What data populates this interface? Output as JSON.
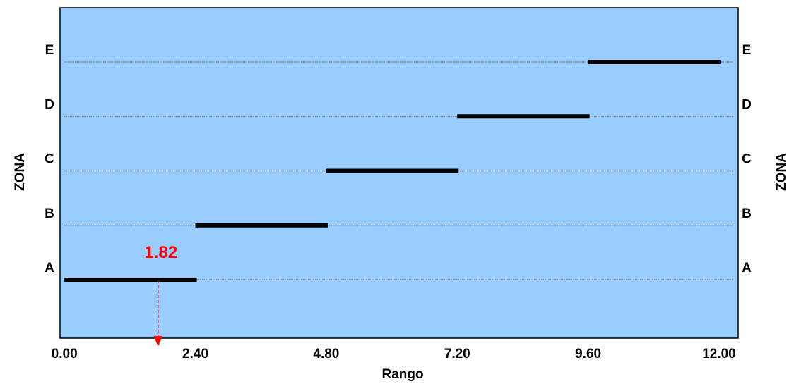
{
  "chart_data": {
    "type": "range-bar",
    "title": "",
    "xlabel": "Rango",
    "ylabel_left": "ZONA",
    "ylabel_right": "ZONA",
    "xlim": [
      -0.08,
      12.35
    ],
    "x_ticks": [
      "0.00",
      "2.40",
      "4.80",
      "7.20",
      "9.60",
      "12.00"
    ],
    "x_tick_values": [
      0,
      2.4,
      4.8,
      7.2,
      9.6,
      12.0
    ],
    "zones": [
      {
        "label": "A",
        "start": 0.0,
        "end": 2.4
      },
      {
        "label": "B",
        "start": 2.4,
        "end": 4.8
      },
      {
        "label": "C",
        "start": 4.8,
        "end": 7.2
      },
      {
        "label": "D",
        "start": 7.2,
        "end": 9.6
      },
      {
        "label": "E",
        "start": 9.6,
        "end": 12.0
      }
    ],
    "marker": {
      "value": 1.82,
      "label": "1.82",
      "zone": "A",
      "color": "#ff0000"
    },
    "colors": {
      "plot_background": "#99ccff",
      "bar": "#000000",
      "gridline": "#808080",
      "marker": "#ff0000"
    },
    "grid": true
  }
}
